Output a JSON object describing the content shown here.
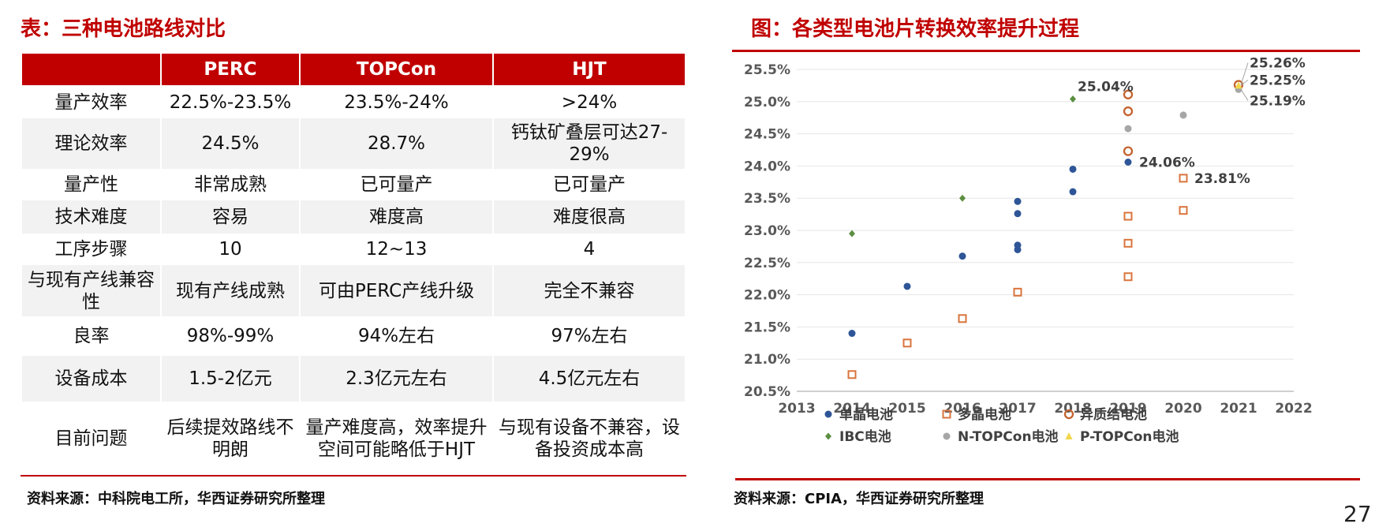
{
  "left": {
    "title": "表：三种电池路线对比",
    "source": "资料来源：中科院电工所，华西证券研究所整理",
    "headers": [
      "",
      "PERC",
      "TOPCon",
      "HJT"
    ],
    "rows": [
      [
        "量产效率",
        "22.5%-23.5%",
        "23.5%-24%",
        ">24%"
      ],
      [
        "理论效率",
        "24.5%",
        "28.7%",
        "钙钛矿叠层可达27-29%"
      ],
      [
        "量产性",
        "非常成熟",
        "已可量产",
        "已可量产"
      ],
      [
        "技术难度",
        "容易",
        "难度高",
        "难度很高"
      ],
      [
        "工序步骤",
        "10",
        "12~13",
        "4"
      ],
      [
        "与现有产线兼容性",
        "现有产线成熟",
        "可由PERC产线升级",
        "完全不兼容"
      ],
      [
        "良率",
        "98%-99%",
        "94%左右",
        "97%左右"
      ],
      [
        "设备成本",
        "1.5-2亿元",
        "2.3亿元左右",
        "4.5亿元左右"
      ],
      [
        "目前问题",
        "后续提效路线不明朗",
        "量产难度高，效率提升空间可能略低于HJT",
        "与现有设备不兼容，设备投资成本高"
      ]
    ]
  },
  "right": {
    "title": "图：各类型电池片转换效率提升过程",
    "source": "资料来源：CPIA，华西证券研究所整理"
  },
  "page_number": "27",
  "chart_data": {
    "type": "scatter",
    "x_ticks": [
      "2013",
      "2014",
      "2015",
      "2016",
      "2017",
      "2018",
      "2019",
      "2020",
      "2021",
      "2022"
    ],
    "y_ticks": [
      "20.5%",
      "21.0%",
      "21.5%",
      "22.0%",
      "22.5%",
      "23.0%",
      "23.5%",
      "24.0%",
      "24.5%",
      "25.0%",
      "25.5%"
    ],
    "xlim": [
      2013,
      2022
    ],
    "ylim": [
      20.5,
      25.5
    ],
    "grid": "horizontal",
    "legend_position": "bottom",
    "series": [
      {
        "name": "单晶电池",
        "marker": "dot",
        "color": "#2e5597",
        "points": [
          [
            2014,
            21.4
          ],
          [
            2015,
            22.13
          ],
          [
            2016,
            22.6
          ],
          [
            2017,
            22.7
          ],
          [
            2017,
            22.77
          ],
          [
            2017,
            23.26
          ],
          [
            2017,
            23.45
          ],
          [
            2018,
            23.6
          ],
          [
            2018,
            23.95
          ],
          [
            2019,
            24.06
          ]
        ]
      },
      {
        "name": "多晶电池",
        "marker": "hollow-square",
        "color": "#d9743c",
        "points": [
          [
            2014,
            20.76
          ],
          [
            2015,
            21.25
          ],
          [
            2016,
            21.63
          ],
          [
            2017,
            22.04
          ],
          [
            2019,
            22.28
          ],
          [
            2019,
            22.8
          ],
          [
            2019,
            23.22
          ],
          [
            2020,
            23.31
          ],
          [
            2020,
            23.81
          ]
        ]
      },
      {
        "name": "异质结电池",
        "marker": "hollow-circle",
        "color": "#c4632f",
        "points": [
          [
            2019,
            24.23
          ],
          [
            2019,
            24.85
          ],
          [
            2019,
            25.11
          ],
          [
            2021,
            25.26
          ]
        ]
      },
      {
        "name": "IBC电池",
        "marker": "diamond",
        "color": "#5b8f41",
        "points": [
          [
            2014,
            22.95
          ],
          [
            2016,
            23.5
          ],
          [
            2018,
            25.04
          ]
        ]
      },
      {
        "name": "N-TOPCon电池",
        "marker": "dot",
        "color": "#a6a6a6",
        "points": [
          [
            2019,
            24.58
          ],
          [
            2020,
            24.79
          ],
          [
            2021,
            25.19
          ]
        ]
      },
      {
        "name": "P-TOPCon电池",
        "marker": "triangle",
        "color": "#f2d64b",
        "points": [
          [
            2021,
            25.25
          ]
        ]
      }
    ],
    "annotations": [
      {
        "text": "25.04%",
        "x": 2018,
        "y": 25.04
      },
      {
        "text": "24.06%",
        "x": 2019,
        "y": 24.06
      },
      {
        "text": "23.81%",
        "x": 2020,
        "y": 23.81
      },
      {
        "text": "25.26%",
        "x": 2021,
        "y": 25.26
      },
      {
        "text": "25.25%",
        "x": 2021,
        "y": 25.25
      },
      {
        "text": "25.19%",
        "x": 2021,
        "y": 25.19
      }
    ]
  }
}
